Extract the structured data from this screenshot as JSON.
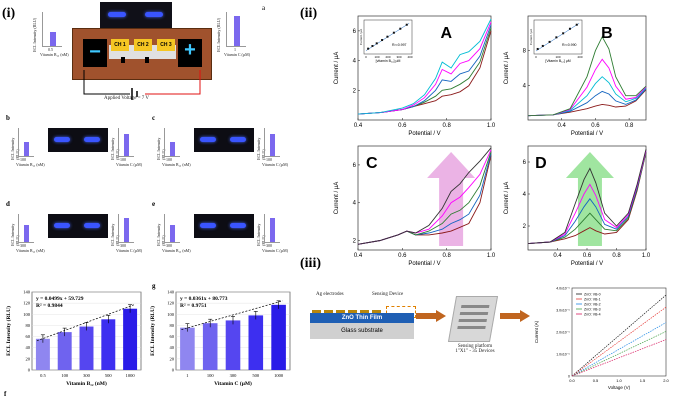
{
  "panel_labels": {
    "i": "(i)",
    "ii": "(ii)",
    "iii": "(iii)",
    "a": "a",
    "b": "b",
    "c": "c",
    "d": "d",
    "e": "e",
    "f": "f",
    "g": "g"
  },
  "chip": {
    "ch": [
      "CH 1",
      "CH 2",
      "CH 3"
    ],
    "minus": "−",
    "plus": "+",
    "voltage": "Applied Voltage = 7 V"
  },
  "mini_left": {
    "ylabel": "ECL Intensity (RLU)",
    "xlabel": "Vitamin B₁₂ (nM)",
    "tick": "0.5"
  },
  "mini_right": {
    "ylabel": "ECL Intensity (RLU)",
    "xlabel": "Vitamin C (µM)",
    "tick": "1"
  },
  "sub_rows": [
    {
      "left": "b",
      "right": "c",
      "b12_tick": "100",
      "c_tick": "100"
    },
    {
      "left": "d",
      "right": "e",
      "b12_tick": "300",
      "c_tick": "300"
    }
  ],
  "sub_common": {
    "ylabel": "ECL Intensity (RLU)",
    "b12_label": "Vitamin B₁₂ (nM)",
    "c_label": "Vitamin C (µM)"
  },
  "chart_data": [
    {
      "type": "bar",
      "panel": "f",
      "categories": [
        "0.5",
        "100",
        "300",
        "500",
        "1000"
      ],
      "values": [
        56,
        68,
        78,
        91,
        110
      ],
      "equation": "y = 0.0499x + 59.729",
      "r2": "R² = 0.9844",
      "xlabel": "Vitamin B₁₂ (nM)",
      "ylabel": "ECL Intensity (RLU)",
      "ylim": [
        0,
        140
      ],
      "yticks": [
        "0",
        "20",
        "40",
        "60",
        "80",
        "100",
        "120",
        "140"
      ]
    },
    {
      "type": "bar",
      "panel": "g",
      "categories": [
        "1",
        "100",
        "300",
        "500",
        "1000"
      ],
      "values": [
        76,
        84,
        89,
        98,
        117
      ],
      "equation": "y = 0.0361x + 80.773",
      "r2": "R² = 0.9751",
      "xlabel": "Vitamin C (µM)",
      "ylabel": "ECL Intensity (RLU)",
      "ylim": [
        0,
        140
      ],
      "yticks": [
        "0",
        "20",
        "40",
        "60",
        "80",
        "100",
        "120",
        "140"
      ]
    },
    {
      "type": "line",
      "panel": "A",
      "xlabel": "Potential / V",
      "ylabel": "Current / µA",
      "xlim": [
        0.4,
        1.0
      ],
      "ylim": [
        0,
        7
      ],
      "xticks": [
        "0.4",
        "0.6",
        "0.8",
        "1.0"
      ],
      "yticks": [
        "2",
        "4",
        "6"
      ],
      "x": [
        0.4,
        0.5,
        0.6,
        0.65,
        0.7,
        0.75,
        0.78,
        0.82,
        0.86,
        0.9,
        0.95,
        1.0
      ],
      "series": [
        {
          "color": "#8b1a1a",
          "values": [
            0.4,
            0.5,
            0.7,
            0.9,
            1.1,
            1.3,
            1.6,
            1.7,
            1.9,
            2.3,
            3.5,
            6.0
          ]
        },
        {
          "color": "#2e7d32",
          "values": [
            0.4,
            0.5,
            0.7,
            0.9,
            1.2,
            1.6,
            2.0,
            2.1,
            2.4,
            2.8,
            3.9,
            6.2
          ]
        },
        {
          "color": "#1565c0",
          "values": [
            0.4,
            0.5,
            0.7,
            0.9,
            1.3,
            2.0,
            2.7,
            2.6,
            3.1,
            3.3,
            4.3,
            6.4
          ]
        },
        {
          "color": "#ff00ff",
          "values": [
            0.4,
            0.5,
            0.7,
            1.0,
            1.5,
            2.4,
            3.4,
            3.1,
            3.8,
            4.0,
            4.8,
            6.6
          ]
        },
        {
          "color": "#00bcd4",
          "values": [
            0.4,
            0.5,
            0.8,
            1.1,
            1.7,
            2.8,
            3.9,
            3.5,
            4.4,
            4.6,
            5.3,
            6.8
          ]
        }
      ],
      "label": "A",
      "inset": {
        "xlabel": "[vitamin B₁₂] µM",
        "ylabel": "Current / µA",
        "r2": "R²=0.997",
        "xticks": [
          "0",
          "100",
          "200",
          "300",
          "400"
        ],
        "x": [
          20,
          60,
          100,
          150,
          200,
          260,
          320,
          380
        ],
        "y": [
          0.5,
          0.9,
          1.3,
          1.8,
          2.3,
          2.9,
          3.5,
          4.1
        ]
      }
    },
    {
      "type": "line",
      "panel": "B",
      "xlabel": "Potential / V",
      "ylabel": "Current / µA",
      "xlim": [
        0.2,
        0.9
      ],
      "ylim": [
        0,
        12
      ],
      "xticks": [
        "0.4",
        "0.6",
        "0.8"
      ],
      "yticks": [
        "4",
        "8"
      ],
      "x": [
        0.2,
        0.35,
        0.45,
        0.55,
        0.6,
        0.64,
        0.68,
        0.72,
        0.78,
        0.84,
        0.9
      ],
      "series": [
        {
          "color": "#8b1a1a",
          "values": [
            0.5,
            0.6,
            0.9,
            1.3,
            1.6,
            1.8,
            1.7,
            1.5,
            1.6,
            2.2,
            3.5
          ]
        },
        {
          "color": "#1565c0",
          "values": [
            0.5,
            0.6,
            1.0,
            2.0,
            2.8,
            3.3,
            3.0,
            2.2,
            1.8,
            2.3,
            3.6
          ]
        },
        {
          "color": "#00bcd4",
          "values": [
            0.5,
            0.6,
            1.1,
            2.8,
            4.2,
            5.0,
            4.3,
            3.0,
            2.1,
            2.5,
            3.7
          ]
        },
        {
          "color": "#ff00ff",
          "values": [
            0.5,
            0.6,
            1.2,
            3.8,
            5.8,
            7.0,
            6.0,
            3.9,
            2.4,
            2.6,
            3.8
          ]
        },
        {
          "color": "#2e7d32",
          "values": [
            0.5,
            0.6,
            1.3,
            5.0,
            8.0,
            9.6,
            8.2,
            5.0,
            2.8,
            2.8,
            3.9
          ]
        }
      ],
      "label": "B",
      "inset": {
        "xlabel": "[Vitamin B₁₂] µM",
        "ylabel": "Current / µA",
        "r2": "R²=0.990",
        "xticks": [
          "0",
          "100",
          "200"
        ],
        "x": [
          10,
          40,
          80,
          120,
          160,
          200,
          240
        ],
        "y": [
          0.6,
          1.2,
          2.0,
          2.9,
          3.7,
          4.6,
          5.4
        ]
      }
    },
    {
      "type": "line",
      "panel": "C",
      "xlabel": "Potential / V",
      "ylabel": "Current / µA",
      "xlim": [
        0.4,
        1.0
      ],
      "ylim": [
        1.5,
        7
      ],
      "xticks": [
        "0.4",
        "0.6",
        "0.8",
        "1.0"
      ],
      "yticks": [
        "2",
        "4",
        "6"
      ],
      "x": [
        0.4,
        0.5,
        0.58,
        0.62,
        0.66,
        0.72,
        0.78,
        0.82,
        0.86,
        0.9,
        0.95,
        1.0
      ],
      "series": [
        {
          "color": "#8b1a1a",
          "values": [
            1.8,
            2.0,
            2.3,
            2.5,
            2.3,
            2.3,
            2.4,
            2.5,
            2.7,
            2.9,
            4.0,
            6.5
          ]
        },
        {
          "color": "#1565c0",
          "values": [
            1.8,
            2.0,
            2.3,
            2.5,
            2.3,
            2.4,
            2.6,
            2.9,
            3.1,
            3.4,
            4.4,
            6.6
          ]
        },
        {
          "color": "#2e7d32",
          "values": [
            1.8,
            2.0,
            2.3,
            2.5,
            2.3,
            2.5,
            2.9,
            3.4,
            3.6,
            4.0,
            4.9,
            6.7
          ]
        },
        {
          "color": "#ff00ff",
          "values": [
            1.8,
            2.0,
            2.3,
            2.5,
            2.4,
            2.6,
            3.3,
            4.0,
            4.3,
            4.8,
            5.5,
            6.8
          ]
        },
        {
          "color": "#333333",
          "values": [
            1.8,
            2.0,
            2.3,
            2.5,
            2.4,
            2.8,
            3.7,
            4.6,
            5.0,
            5.6,
            6.2,
            6.9
          ]
        }
      ],
      "label": "C"
    },
    {
      "type": "line",
      "panel": "D",
      "xlabel": "Potential / V",
      "ylabel": "Current / µA",
      "xlim": [
        0.2,
        1.0
      ],
      "ylim": [
        0.5,
        7
      ],
      "xticks": [
        "0.4",
        "0.6",
        "0.8",
        "1.0"
      ],
      "yticks": [
        "2",
        "4",
        "6"
      ],
      "x": [
        0.2,
        0.35,
        0.45,
        0.52,
        0.58,
        0.62,
        0.66,
        0.72,
        0.8,
        0.88,
        0.94,
        1.0
      ],
      "series": [
        {
          "color": "#8b1a1a",
          "values": [
            0.9,
            1.0,
            1.2,
            1.4,
            1.7,
            1.9,
            1.7,
            1.5,
            1.6,
            2.4,
            4.2,
            6.6
          ]
        },
        {
          "color": "#2e7d32",
          "values": [
            0.9,
            1.0,
            1.3,
            1.8,
            2.4,
            2.8,
            2.4,
            1.8,
            1.7,
            2.5,
            4.3,
            6.6
          ]
        },
        {
          "color": "#1565c0",
          "values": [
            0.9,
            1.0,
            1.4,
            2.3,
            3.2,
            3.7,
            3.2,
            2.1,
            1.8,
            2.6,
            4.4,
            6.7
          ]
        },
        {
          "color": "#ff00ff",
          "values": [
            0.9,
            1.0,
            1.5,
            2.8,
            4.0,
            4.6,
            3.9,
            2.4,
            1.9,
            2.7,
            4.5,
            6.7
          ]
        },
        {
          "color": "#333333",
          "values": [
            0.9,
            1.0,
            1.6,
            3.4,
            4.9,
            5.6,
            4.7,
            2.8,
            2.0,
            2.8,
            4.6,
            6.8
          ]
        }
      ],
      "label": "D"
    }
  ],
  "schematic": {
    "ag": "Ag electrodes",
    "sensing": "Sensing Device",
    "zno": "ZnO Thin Film",
    "glass": "Glass substrate",
    "platform1": "Sensing platform",
    "platform2": "1\"X1\" - 35 Devices"
  },
  "iv_chart": {
    "xlabel": "Voltage (V)",
    "ylabel": "Current (A)",
    "legend": [
      "ZnO: VB-0",
      "ZnO: VB-1",
      "ZnO: VB-2",
      "ZnO: VB-3",
      "ZnO: VB-4"
    ],
    "colors": [
      "#1a1a1a",
      "#e53935",
      "#1e88e5",
      "#43a047",
      "#d81b60"
    ],
    "slopes": [
      1.0,
      0.85,
      0.66,
      0.55,
      0.45
    ],
    "xticks": [
      "0.0",
      "0.5",
      "1.0",
      "1.5",
      "2.0"
    ],
    "yticks": [
      "0",
      "1.0x10⁻⁶",
      "2.0x10⁻⁶",
      "3.0x10⁻⁶",
      "4.0x10⁻⁶"
    ]
  },
  "colors": {
    "brown": "#a0522d",
    "arrow_pink": "#e7a6e1",
    "arrow_green": "#8fe08f",
    "bar": "#3b3bf2",
    "chip_yellow": "#f5c623"
  }
}
